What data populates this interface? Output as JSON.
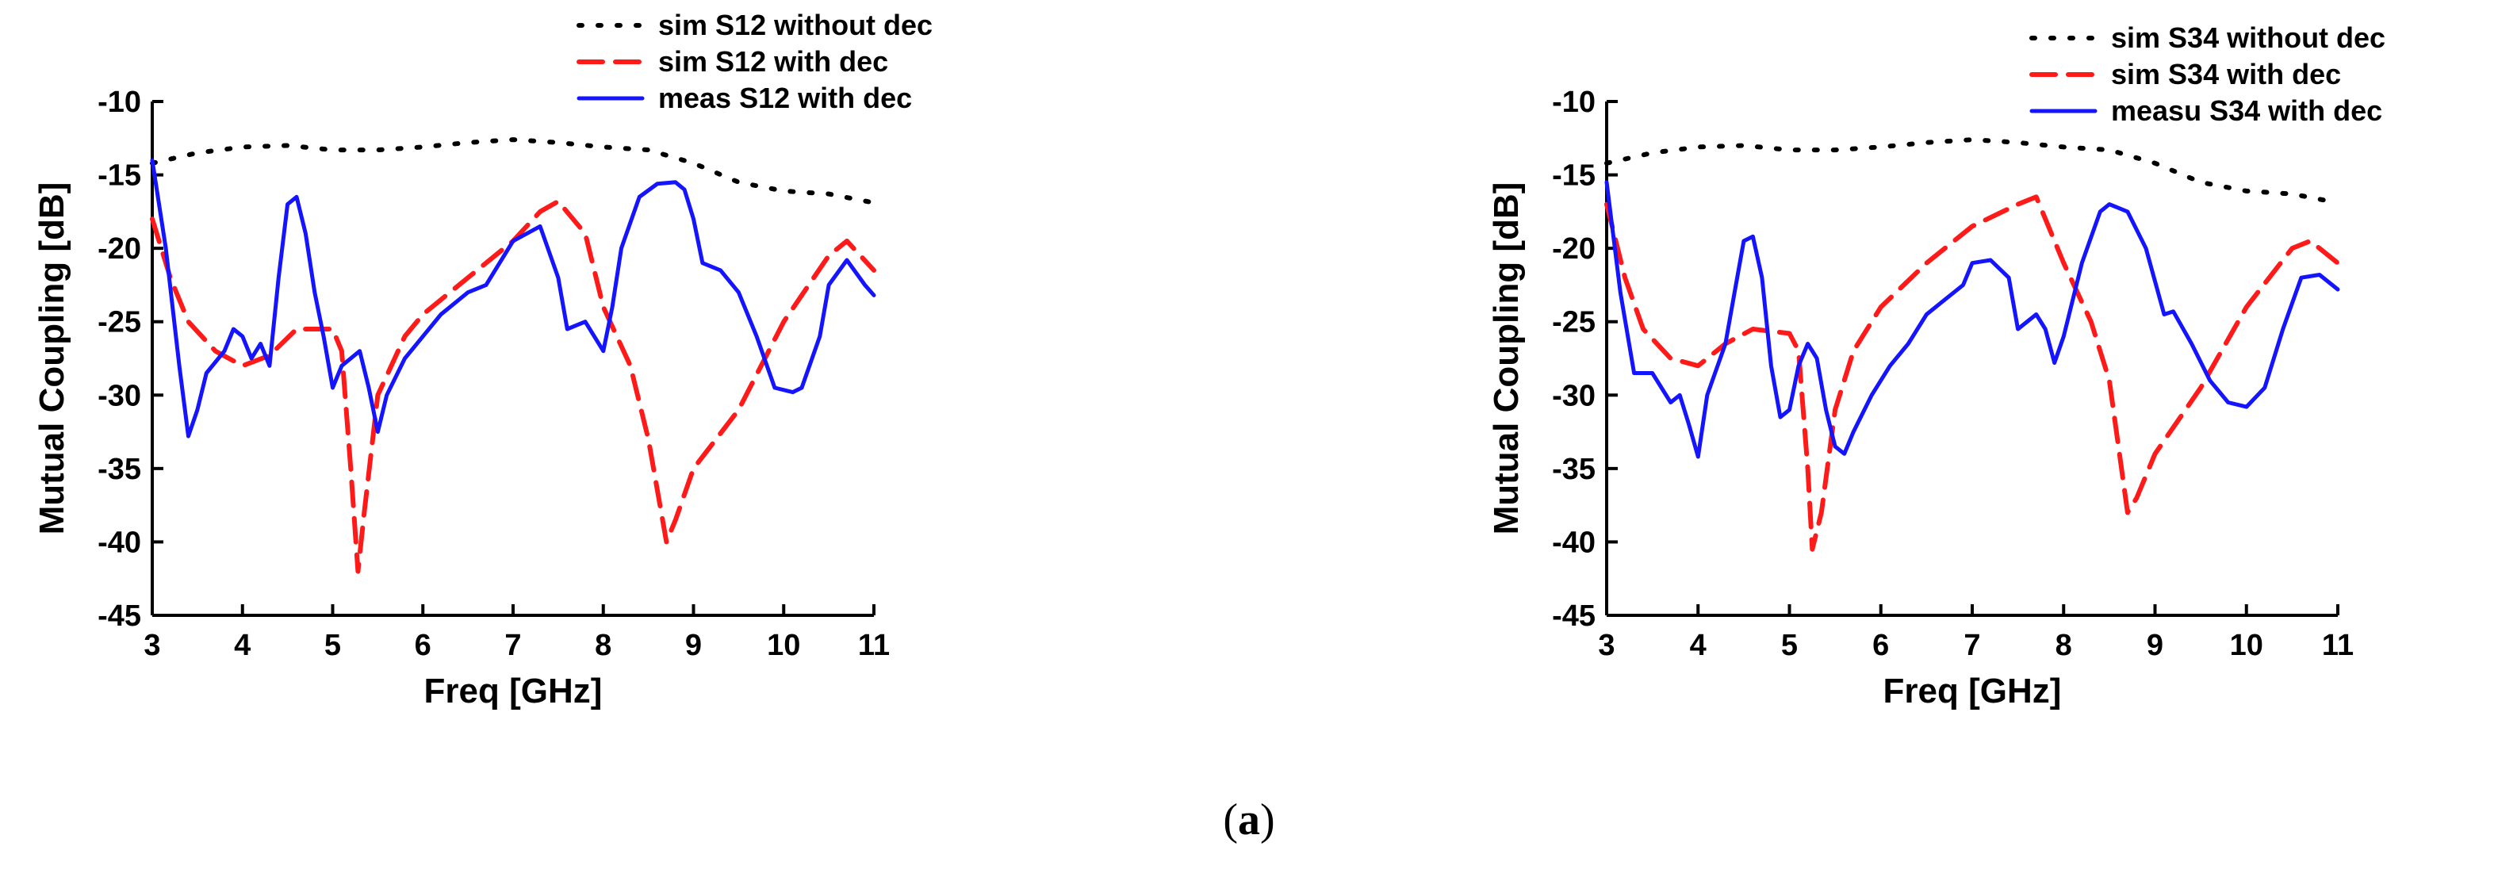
{
  "caption": {
    "open": "(",
    "letter": "a",
    "close": ")"
  },
  "colors": {
    "sim_without": "#000000",
    "sim_with": "#ff1a1a",
    "meas_with": "#1414ff"
  },
  "chart_data": [
    {
      "type": "line",
      "xlabel": "Freq [GHz]",
      "ylabel": "Mutual Coupling [dB]",
      "xlim": [
        3,
        11
      ],
      "ylim": [
        -45,
        -10
      ],
      "xticks": [
        3,
        4,
        5,
        6,
        7,
        8,
        9,
        10,
        11
      ],
      "yticks": [
        -10,
        -15,
        -20,
        -25,
        -30,
        -35,
        -40,
        -45
      ],
      "legend_position": "top-right",
      "series": [
        {
          "name": "sim S12 without dec",
          "style": "dotted",
          "color": "#000000",
          "points": [
            [
              3,
              -14.2
            ],
            [
              3.5,
              -13.5
            ],
            [
              4,
              -13.1
            ],
            [
              4.5,
              -13.0
            ],
            [
              5,
              -13.3
            ],
            [
              5.5,
              -13.3
            ],
            [
              6,
              -13.1
            ],
            [
              6.5,
              -12.8
            ],
            [
              7,
              -12.6
            ],
            [
              7.5,
              -12.8
            ],
            [
              8,
              -13.1
            ],
            [
              8.5,
              -13.3
            ],
            [
              9,
              -14.2
            ],
            [
              9.5,
              -15.5
            ],
            [
              10,
              -16.1
            ],
            [
              10.5,
              -16.3
            ],
            [
              11,
              -16.9
            ]
          ]
        },
        {
          "name": "sim S12 with dec",
          "style": "dashed",
          "color": "#ff1a1a",
          "points": [
            [
              3,
              -18
            ],
            [
              3.2,
              -22
            ],
            [
              3.4,
              -25
            ],
            [
              3.7,
              -27
            ],
            [
              4,
              -28
            ],
            [
              4.3,
              -27.3
            ],
            [
              4.6,
              -25.5
            ],
            [
              5,
              -25.5
            ],
            [
              5.1,
              -27
            ],
            [
              5.2,
              -35
            ],
            [
              5.28,
              -42
            ],
            [
              5.35,
              -38
            ],
            [
              5.5,
              -30
            ],
            [
              5.8,
              -26
            ],
            [
              6,
              -24.5
            ],
            [
              6.5,
              -22
            ],
            [
              7,
              -19.5
            ],
            [
              7.3,
              -17.5
            ],
            [
              7.5,
              -16.8
            ],
            [
              7.8,
              -19
            ],
            [
              8,
              -24
            ],
            [
              8.3,
              -28
            ],
            [
              8.5,
              -33
            ],
            [
              8.7,
              -40
            ],
            [
              8.8,
              -38.5
            ],
            [
              9,
              -35
            ],
            [
              9.5,
              -31
            ],
            [
              10,
              -25
            ],
            [
              10.5,
              -20.5
            ],
            [
              10.7,
              -19.5
            ],
            [
              11,
              -21.5
            ]
          ]
        },
        {
          "name": "meas S12 with dec",
          "style": "solid",
          "color": "#1414ff",
          "points": [
            [
              3,
              -14
            ],
            [
              3.15,
              -20
            ],
            [
              3.3,
              -28
            ],
            [
              3.4,
              -32.8
            ],
            [
              3.5,
              -31
            ],
            [
              3.6,
              -28.5
            ],
            [
              3.8,
              -27
            ],
            [
              3.9,
              -25.5
            ],
            [
              4,
              -26
            ],
            [
              4.1,
              -27.5
            ],
            [
              4.2,
              -26.5
            ],
            [
              4.3,
              -28
            ],
            [
              4.4,
              -22
            ],
            [
              4.5,
              -17
            ],
            [
              4.6,
              -16.5
            ],
            [
              4.7,
              -19
            ],
            [
              4.8,
              -23
            ],
            [
              4.9,
              -26
            ],
            [
              5,
              -29.5
            ],
            [
              5.1,
              -28
            ],
            [
              5.3,
              -27
            ],
            [
              5.4,
              -29.5
            ],
            [
              5.5,
              -32.5
            ],
            [
              5.6,
              -30
            ],
            [
              5.8,
              -27.5
            ],
            [
              6,
              -26
            ],
            [
              6.2,
              -24.5
            ],
            [
              6.5,
              -23
            ],
            [
              6.7,
              -22.5
            ],
            [
              7,
              -19.5
            ],
            [
              7.3,
              -18.5
            ],
            [
              7.5,
              -22
            ],
            [
              7.6,
              -25.5
            ],
            [
              7.8,
              -25
            ],
            [
              8,
              -27
            ],
            [
              8.1,
              -24
            ],
            [
              8.2,
              -20
            ],
            [
              8.4,
              -16.5
            ],
            [
              8.6,
              -15.6
            ],
            [
              8.8,
              -15.5
            ],
            [
              8.9,
              -16
            ],
            [
              9,
              -18
            ],
            [
              9.1,
              -21
            ],
            [
              9.3,
              -21.5
            ],
            [
              9.5,
              -23
            ],
            [
              9.7,
              -26
            ],
            [
              9.9,
              -29.5
            ],
            [
              10.1,
              -29.8
            ],
            [
              10.2,
              -29.5
            ],
            [
              10.4,
              -26
            ],
            [
              10.5,
              -22.5
            ],
            [
              10.7,
              -20.8
            ],
            [
              10.9,
              -22.5
            ],
            [
              11,
              -23.2
            ]
          ]
        }
      ]
    },
    {
      "type": "line",
      "xlabel": "Freq [GHz]",
      "ylabel": "Mutual Coupling [dB]",
      "xlim": [
        3,
        11
      ],
      "ylim": [
        -45,
        -10
      ],
      "xticks": [
        3,
        4,
        5,
        6,
        7,
        8,
        9,
        10,
        11
      ],
      "yticks": [
        -10,
        -15,
        -20,
        -25,
        -30,
        -35,
        -40,
        -45
      ],
      "legend_position": "top-right",
      "series": [
        {
          "name": "sim S34 without dec",
          "style": "dotted",
          "color": "#000000",
          "points": [
            [
              3,
              -14.2
            ],
            [
              3.5,
              -13.5
            ],
            [
              4,
              -13.1
            ],
            [
              4.5,
              -13.0
            ],
            [
              5,
              -13.3
            ],
            [
              5.5,
              -13.3
            ],
            [
              6,
              -13.1
            ],
            [
              6.5,
              -12.8
            ],
            [
              7,
              -12.6
            ],
            [
              7.5,
              -12.8
            ],
            [
              8,
              -13.1
            ],
            [
              8.5,
              -13.3
            ],
            [
              9,
              -14.2
            ],
            [
              9.5,
              -15.5
            ],
            [
              10,
              -16.1
            ],
            [
              10.5,
              -16.3
            ],
            [
              11,
              -16.9
            ]
          ]
        },
        {
          "name": "sim S34 with dec",
          "style": "dashed",
          "color": "#ff1a1a",
          "points": [
            [
              3,
              -17
            ],
            [
              3.2,
              -22
            ],
            [
              3.4,
              -25.5
            ],
            [
              3.7,
              -27.5
            ],
            [
              4,
              -28
            ],
            [
              4.3,
              -26.5
            ],
            [
              4.6,
              -25.5
            ],
            [
              5,
              -25.8
            ],
            [
              5.1,
              -27
            ],
            [
              5.2,
              -35
            ],
            [
              5.25,
              -40.5
            ],
            [
              5.35,
              -38
            ],
            [
              5.5,
              -31
            ],
            [
              5.7,
              -27
            ],
            [
              6,
              -24
            ],
            [
              6.5,
              -21
            ],
            [
              7,
              -18.5
            ],
            [
              7.5,
              -17
            ],
            [
              7.7,
              -16.5
            ],
            [
              8,
              -21
            ],
            [
              8.3,
              -25
            ],
            [
              8.5,
              -29
            ],
            [
              8.7,
              -38
            ],
            [
              8.8,
              -37
            ],
            [
              9,
              -34
            ],
            [
              9.5,
              -29.5
            ],
            [
              10,
              -24
            ],
            [
              10.5,
              -20
            ],
            [
              10.7,
              -19.5
            ],
            [
              11,
              -21
            ]
          ]
        },
        {
          "name": "measu S34 with dec",
          "style": "solid",
          "color": "#1414ff",
          "points": [
            [
              3,
              -15.5
            ],
            [
              3.15,
              -23
            ],
            [
              3.3,
              -28.5
            ],
            [
              3.5,
              -28.5
            ],
            [
              3.7,
              -30.5
            ],
            [
              3.8,
              -30
            ],
            [
              3.9,
              -32
            ],
            [
              4,
              -34.2
            ],
            [
              4.1,
              -30
            ],
            [
              4.3,
              -26.5
            ],
            [
              4.4,
              -23
            ],
            [
              4.5,
              -19.5
            ],
            [
              4.6,
              -19.2
            ],
            [
              4.7,
              -22
            ],
            [
              4.8,
              -28
            ],
            [
              4.9,
              -31.5
            ],
            [
              5,
              -31
            ],
            [
              5.1,
              -28
            ],
            [
              5.2,
              -26.5
            ],
            [
              5.3,
              -27.5
            ],
            [
              5.4,
              -31
            ],
            [
              5.5,
              -33.5
            ],
            [
              5.6,
              -34
            ],
            [
              5.7,
              -32.5
            ],
            [
              5.9,
              -30
            ],
            [
              6.1,
              -28
            ],
            [
              6.3,
              -26.5
            ],
            [
              6.5,
              -24.5
            ],
            [
              6.7,
              -23.5
            ],
            [
              6.9,
              -22.5
            ],
            [
              7,
              -21
            ],
            [
              7.2,
              -20.8
            ],
            [
              7.4,
              -22
            ],
            [
              7.5,
              -25.5
            ],
            [
              7.7,
              -24.5
            ],
            [
              7.8,
              -25.5
            ],
            [
              7.9,
              -27.8
            ],
            [
              8,
              -26
            ],
            [
              8.2,
              -21
            ],
            [
              8.4,
              -17.5
            ],
            [
              8.5,
              -17
            ],
            [
              8.7,
              -17.5
            ],
            [
              8.9,
              -20
            ],
            [
              9.1,
              -24.5
            ],
            [
              9.2,
              -24.3
            ],
            [
              9.4,
              -26.5
            ],
            [
              9.6,
              -29
            ],
            [
              9.8,
              -30.5
            ],
            [
              10,
              -30.8
            ],
            [
              10.2,
              -29.5
            ],
            [
              10.4,
              -25.5
            ],
            [
              10.6,
              -22
            ],
            [
              10.8,
              -21.8
            ],
            [
              11,
              -22.8
            ]
          ]
        }
      ]
    }
  ]
}
